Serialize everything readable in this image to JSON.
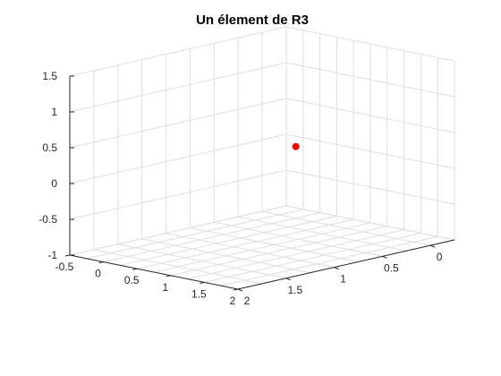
{
  "chart_data": {
    "type": "scatter3d",
    "title": "Un élement de R3",
    "xlabel": "",
    "ylabel": "",
    "zlabel": "",
    "xlim": [
      -0.5,
      2
    ],
    "ylim": [
      -0.25,
      2
    ],
    "zlim": [
      -1,
      1.5
    ],
    "x_ticks": [
      "-0.5",
      "0",
      "0.5",
      "1",
      "1.5",
      "2"
    ],
    "y_ticks": [
      "0",
      "0.5",
      "1",
      "1.5",
      "2"
    ],
    "z_ticks": [
      "-1",
      "-0.5",
      "0",
      "0.5",
      "1",
      "1.5"
    ],
    "grid": true,
    "view": "default 3-D view (azimuth -37.5, elevation 30)",
    "series": [
      {
        "x": [
          0
        ],
        "y": [
          0
        ],
        "z": [
          0
        ],
        "marker": "filled-circle",
        "color": "#ff0000"
      }
    ]
  }
}
